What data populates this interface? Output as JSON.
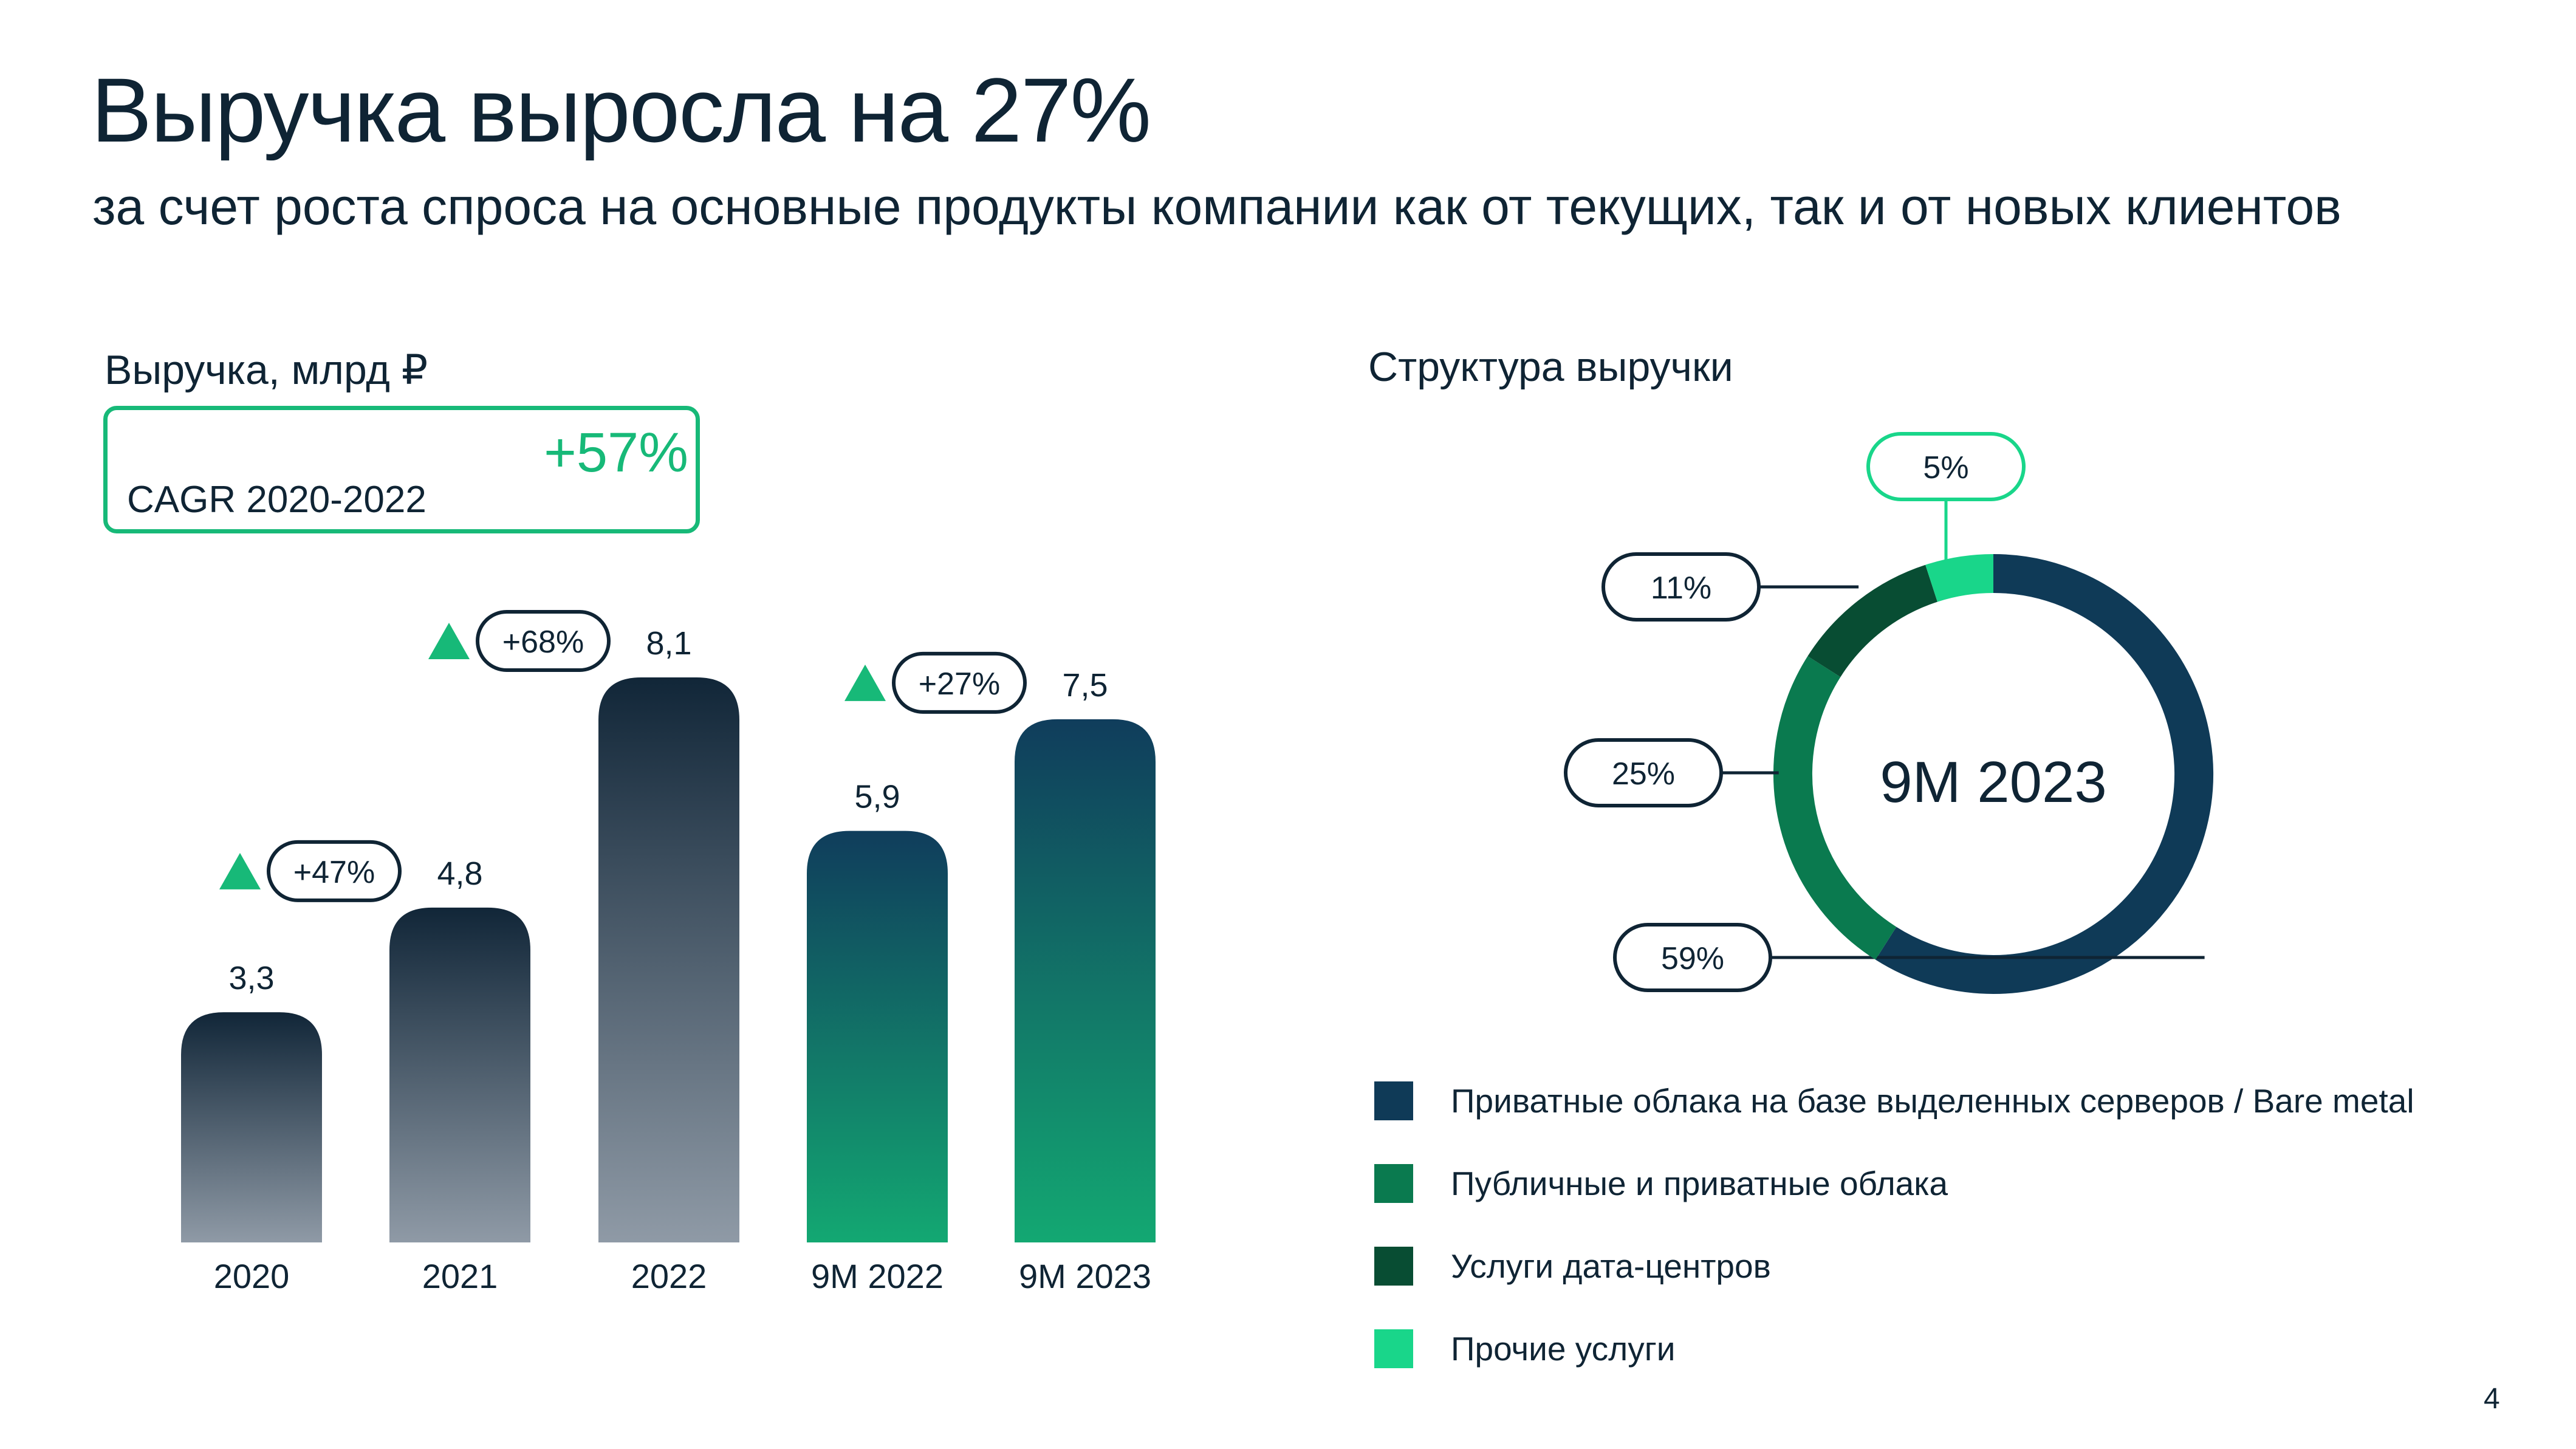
{
  "header": {
    "title": "Выручка выросла на 27%",
    "subtitle": "за счет роста спроса на основные продукты компании как от текущих, так и от новых клиентов"
  },
  "revenue": {
    "section_title": "Выручка, млрд ₽",
    "cagr_value": "+57%",
    "cagr_label": "CAGR 2020-2022"
  },
  "structure": {
    "section_title": "Структура выручки",
    "center_label": "9M 2023"
  },
  "legend": [
    {
      "label": "Приватные облака на базе выделенных серверов / Bare metal",
      "color": "#0f3a57"
    },
    {
      "label": "Публичные и приватные облака",
      "color": "#0a7a4f"
    },
    {
      "label": "Услуги дата-центров",
      "color": "#084d33"
    },
    {
      "label": "Прочие услуги",
      "color": "#19d68a"
    }
  ],
  "page_number": "4",
  "chart_data": [
    {
      "type": "bar",
      "title": "Выручка, млрд ₽",
      "categories": [
        "2020",
        "2021",
        "2022",
        "9M 2022",
        "9M 2023"
      ],
      "values": [
        3.3,
        4.8,
        8.1,
        5.9,
        7.5
      ],
      "value_labels": [
        "3,3",
        "4,8",
        "8,1",
        "5,9",
        "7,5"
      ],
      "growth_annotations": [
        {
          "between": [
            "2020",
            "2021"
          ],
          "label": "+47%"
        },
        {
          "between": [
            "2021",
            "2022"
          ],
          "label": "+68%"
        },
        {
          "between": [
            "9M 2022",
            "9M 2023"
          ],
          "label": "+27%"
        }
      ],
      "ylim": [
        0,
        8.1
      ],
      "xlabel": "",
      "ylabel": ""
    },
    {
      "type": "pie",
      "title": "Структура выручки",
      "center_label": "9M 2023",
      "labels": [
        "Приватные облака на базе выделенных серверов / Bare metal",
        "Публичные и приватные облака",
        "Услуги дата-центров",
        "Прочие услуги"
      ],
      "values": [
        59,
        25,
        11,
        5
      ],
      "value_labels": [
        "59%",
        "25%",
        "11%",
        "5%"
      ]
    }
  ]
}
